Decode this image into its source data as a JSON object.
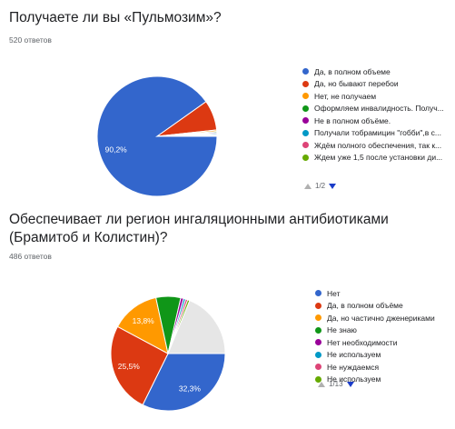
{
  "chart_data": [
    {
      "type": "pie",
      "title": "Получаете ли вы «Пульмозим»?",
      "subtitle": "520 ответов",
      "legend_position": "right",
      "categories": [
        "Да, в полном объеме",
        "Да, но бывают перебои",
        "Нет, не получаем",
        "Оформляем инвалидность. Получ...",
        "Не в полном объёме.",
        "Получали тобрамицин \"гобби\",в с...",
        "Ждём полного обеспечения, так к...",
        "Ждем уже 1,5 после установки ди..."
      ],
      "values": [
        90.2,
        8.1,
        0.4,
        0.3,
        0.3,
        0.3,
        0.2,
        0.2
      ],
      "value_labels": [
        "90,2%",
        "",
        "",
        "",
        "",
        "",
        "",
        ""
      ],
      "colors": [
        "#3366cc",
        "#dc3912",
        "#ff9900",
        "#109618",
        "#990099",
        "#0099c6",
        "#dd4477",
        "#66aa00"
      ],
      "pager": "1/2"
    },
    {
      "type": "pie",
      "title": "Обеспечивает ли регион ингаляционными антибиотиками (Брамитоб и Колистин)?",
      "subtitle": "486 ответов",
      "legend_position": "right",
      "categories": [
        "Нет",
        "Да, в полном объёме",
        "Да, но частично дженериками",
        "Не знаю",
        "Нет необходимости",
        "Не используем",
        "Не нуждаемся",
        "Не используем"
      ],
      "values": [
        32.3,
        25.5,
        13.8,
        7.0,
        0.8,
        0.6,
        0.6,
        0.6
      ],
      "value_labels": [
        "32,3%",
        "25,5%",
        "13,8%",
        "",
        "",
        "",
        "",
        ""
      ],
      "colors": [
        "#3366cc",
        "#dc3912",
        "#ff9900",
        "#109618",
        "#990099",
        "#0099c6",
        "#dd4477",
        "#66aa00"
      ],
      "other_color": "#e6e6e6",
      "pager": "1/13"
    }
  ]
}
